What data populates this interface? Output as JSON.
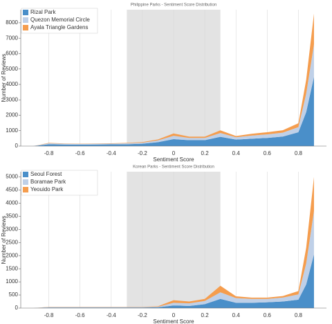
{
  "chart_data": [
    {
      "type": "stacked_area",
      "title": "Philippine Parks - Sentiment Score Distribution",
      "x_label": "Sentiment Score",
      "y_label": "Number of Reviews",
      "x": [
        -0.9,
        -0.8,
        -0.7,
        -0.6,
        -0.5,
        -0.4,
        -0.3,
        -0.2,
        -0.1,
        0,
        0.1,
        0.2,
        0.3,
        0.4,
        0.5,
        0.6,
        0.7,
        0.8,
        0.85,
        0.9
      ],
      "series": [
        {
          "name": "Rizal Park",
          "color": "#4a8fc9",
          "values": [
            0,
            120,
            100,
            90,
            100,
            110,
            120,
            150,
            250,
            450,
            380,
            380,
            600,
            420,
            480,
            530,
            620,
            900,
            2200,
            4500
          ]
        },
        {
          "name": "Quezon Memorial Circle",
          "color": "#bfd0e8",
          "values": [
            0,
            60,
            50,
            50,
            50,
            50,
            60,
            70,
            120,
            220,
            150,
            150,
            250,
            150,
            200,
            230,
            250,
            330,
            1200,
            2100
          ]
        },
        {
          "name": "Ayala Triangle Gardens",
          "color": "#f59d4e",
          "values": [
            0,
            30,
            20,
            20,
            20,
            20,
            30,
            40,
            60,
            150,
            80,
            80,
            170,
            80,
            120,
            140,
            160,
            250,
            900,
            2000
          ]
        }
      ],
      "shaded_range": [
        -0.3,
        0.3
      ],
      "xlim": [
        -0.98,
        0.98
      ],
      "xticks": [
        -0.8,
        -0.6,
        -0.4,
        -0.2,
        0,
        0.2,
        0.4,
        0.6,
        0.8
      ],
      "ylim": [
        0,
        8850
      ],
      "yticks": [
        0,
        1000,
        2000,
        3000,
        4000,
        5000,
        6000,
        7000,
        8000
      ],
      "grid": true,
      "legend": "upper-left"
    },
    {
      "type": "stacked_area",
      "title": "Korean Parks - Sentiment Score Distribution",
      "x_label": "Sentiment Score",
      "y_label": "Number of Reviews",
      "x": [
        -0.9,
        -0.8,
        -0.7,
        -0.6,
        -0.5,
        -0.4,
        -0.3,
        -0.2,
        -0.1,
        0,
        0.1,
        0.2,
        0.3,
        0.4,
        0.5,
        0.6,
        0.7,
        0.8,
        0.85,
        0.9
      ],
      "series": [
        {
          "name": "Seoul Forest",
          "color": "#4a8fc9",
          "values": [
            0,
            20,
            20,
            20,
            20,
            20,
            20,
            20,
            30,
            100,
            80,
            150,
            350,
            200,
            200,
            220,
            250,
            320,
            900,
            2050
          ]
        },
        {
          "name": "Boramae Park",
          "color": "#bfd0e8",
          "values": [
            0,
            15,
            15,
            15,
            15,
            15,
            15,
            15,
            20,
            100,
            100,
            120,
            250,
            180,
            150,
            130,
            150,
            200,
            800,
            1650
          ]
        },
        {
          "name": "Yeouido Park",
          "color": "#f59d4e",
          "values": [
            0,
            10,
            10,
            10,
            10,
            10,
            10,
            10,
            20,
            100,
            70,
            80,
            250,
            70,
            50,
            50,
            60,
            130,
            600,
            1300
          ]
        }
      ],
      "shaded_range": [
        -0.3,
        0.3
      ],
      "xlim": [
        -0.98,
        0.98
      ],
      "xticks": [
        -0.8,
        -0.6,
        -0.4,
        -0.2,
        0,
        0.2,
        0.4,
        0.6,
        0.8
      ],
      "ylim": [
        0,
        5200
      ],
      "yticks": [
        0,
        500,
        1000,
        1500,
        2000,
        2500,
        3000,
        3500,
        4000,
        4500,
        5000
      ],
      "grid": true,
      "legend": "upper-left"
    }
  ]
}
